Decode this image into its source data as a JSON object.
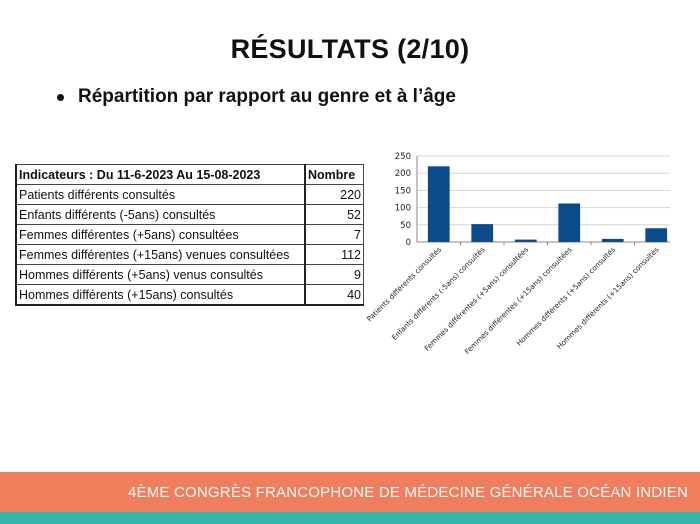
{
  "slide": {
    "title": "RÉSULTATS (2/10)",
    "bullet": "Répartition par rapport au genre et à l’âge",
    "footer": "4ÈME CONGRÈS FRANCOPHONE DE MÉDECINE GÉNÉRALE OCÉAN INDIEN"
  },
  "table": {
    "header": [
      "Indicateurs : Du 11-6-2023 Au 15-08-2023",
      "Nombre"
    ],
    "rows": [
      [
        "Patients différents consultés",
        "220"
      ],
      [
        "Enfants différents (-5ans) consultés",
        "52"
      ],
      [
        "Femmes différentes (+5ans) consultées",
        "7"
      ],
      [
        "Femmes différentes (+15ans) venues consultées",
        "112"
      ],
      [
        "Hommes différents (+5ans) venus consultés",
        "9"
      ],
      [
        "Hommes différents (+15ans) consultés",
        "40"
      ]
    ]
  },
  "colors": {
    "bar": "#0b4a8b",
    "footer_orange": "#f07e5c",
    "footer_teal": "#38b6ad"
  },
  "chart_data": {
    "type": "bar",
    "categories": [
      "Patients différents consultés",
      "Enfants différents (-5ans) consultés",
      "Femmes différentes (+5ans) consultées",
      "Femmes différentes (+15ans) consultées",
      "Hommes différents (+5ans) consultés",
      "Hommes différents (+15ans) consultés"
    ],
    "values": [
      220,
      52,
      7,
      112,
      9,
      40
    ],
    "yticks": [
      0,
      50,
      100,
      150,
      200,
      250
    ],
    "ylim": [
      0,
      250
    ],
    "grid": true,
    "legend": false
  }
}
